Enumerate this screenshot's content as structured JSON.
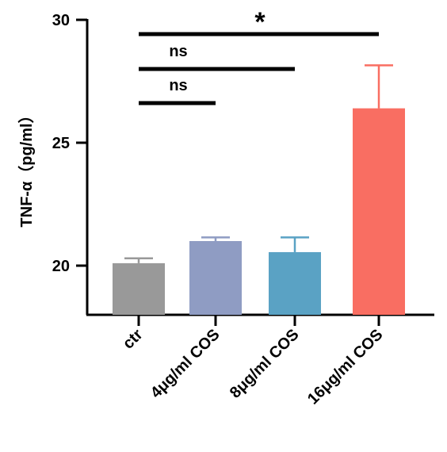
{
  "chart_data": {
    "type": "bar",
    "categories": [
      "ctr",
      "4μg/ml COS",
      "8μg/ml COS",
      "16μg/ml COS"
    ],
    "values": [
      20.1,
      21.0,
      20.55,
      26.4
    ],
    "errors": [
      0.2,
      0.15,
      0.6,
      1.75
    ],
    "colors": [
      "#999999",
      "#8f9cc3",
      "#5aa2c4",
      "#f96e62"
    ],
    "ylabel": "TNF-α（pg/ml）",
    "ylim": [
      18,
      30
    ],
    "yticks": [
      20,
      25,
      30
    ],
    "ytick_labels": [
      "20",
      "25",
      "30"
    ],
    "grid": false,
    "significance": [
      {
        "from": 0,
        "to": 1,
        "label": "ns"
      },
      {
        "from": 0,
        "to": 2,
        "label": "ns"
      },
      {
        "from": 0,
        "to": 3,
        "label": "*"
      }
    ]
  }
}
